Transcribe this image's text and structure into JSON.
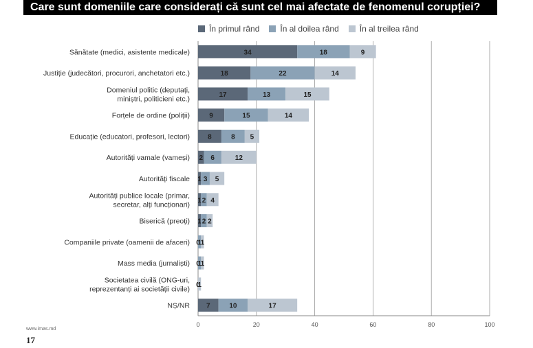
{
  "title": "Care sunt domeniile care considerați că sunt cel mai afectate de fenomenul corupției?",
  "footer": {
    "site": "www.imas.md",
    "page": "17"
  },
  "colors": {
    "series1": "#5b6878",
    "series2": "#8ba2b6",
    "series3": "#bcc6d1"
  },
  "chart_data": {
    "type": "bar",
    "orientation": "horizontal",
    "stacked": true,
    "categories": [
      [
        "Sănătate (medici, asistente medicale)"
      ],
      [
        "Justiție (judecători, procurori, anchetatori etc.)"
      ],
      [
        "Domeniul politic (deputați,",
        "miniștri, politicieni etc.)"
      ],
      [
        "Forțele de ordine (poliții)"
      ],
      [
        "Educație (educatori, profesori, lectori)"
      ],
      [
        "Autorități vamale (vameși)"
      ],
      [
        "Autorități fiscale"
      ],
      [
        "Autorități publice locale (primar,",
        "secretar, alți funcționari)"
      ],
      [
        "Biserică (preoți)"
      ],
      [
        "Companiile private (oamenii de afaceri)"
      ],
      [
        "Mass media (jurnaliști)"
      ],
      [
        "Societatea civilă (ONG-uri,",
        "reprezentanți ai societății civile)"
      ],
      [
        "NȘ/NR"
      ]
    ],
    "series": [
      {
        "name": "În primul rând",
        "values": [
          34,
          18,
          17,
          9,
          8,
          2,
          1,
          1,
          1,
          0,
          0,
          0,
          7
        ]
      },
      {
        "name": "În al doilea rând",
        "values": [
          18,
          22,
          13,
          15,
          8,
          6,
          3,
          2,
          2,
          1,
          1,
          0,
          10
        ]
      },
      {
        "name": "În al treilea rând",
        "values": [
          9,
          14,
          15,
          14,
          5,
          12,
          5,
          4,
          2,
          1,
          1,
          1,
          17
        ]
      }
    ],
    "value_labels": [
      [
        "34",
        "18",
        "9"
      ],
      [
        "18",
        "22",
        "14"
      ],
      [
        "17",
        "13",
        "15"
      ],
      [
        "9",
        "15",
        "14"
      ],
      [
        "8",
        "8",
        "5"
      ],
      [
        "2",
        "6",
        "12"
      ],
      [
        "1",
        "3",
        "5"
      ],
      [
        "1",
        "2",
        "4"
      ],
      [
        "1",
        "2",
        "2"
      ],
      [
        "0",
        "1",
        "1"
      ],
      [
        "0",
        "1",
        "1"
      ],
      [
        "0",
        "0",
        "1"
      ],
      [
        "7",
        "10",
        "17"
      ]
    ],
    "xlim": [
      0,
      100
    ],
    "xticks": [
      "0",
      "20",
      "40",
      "60",
      "80",
      "100"
    ],
    "grid": true,
    "legend_position": "top"
  }
}
